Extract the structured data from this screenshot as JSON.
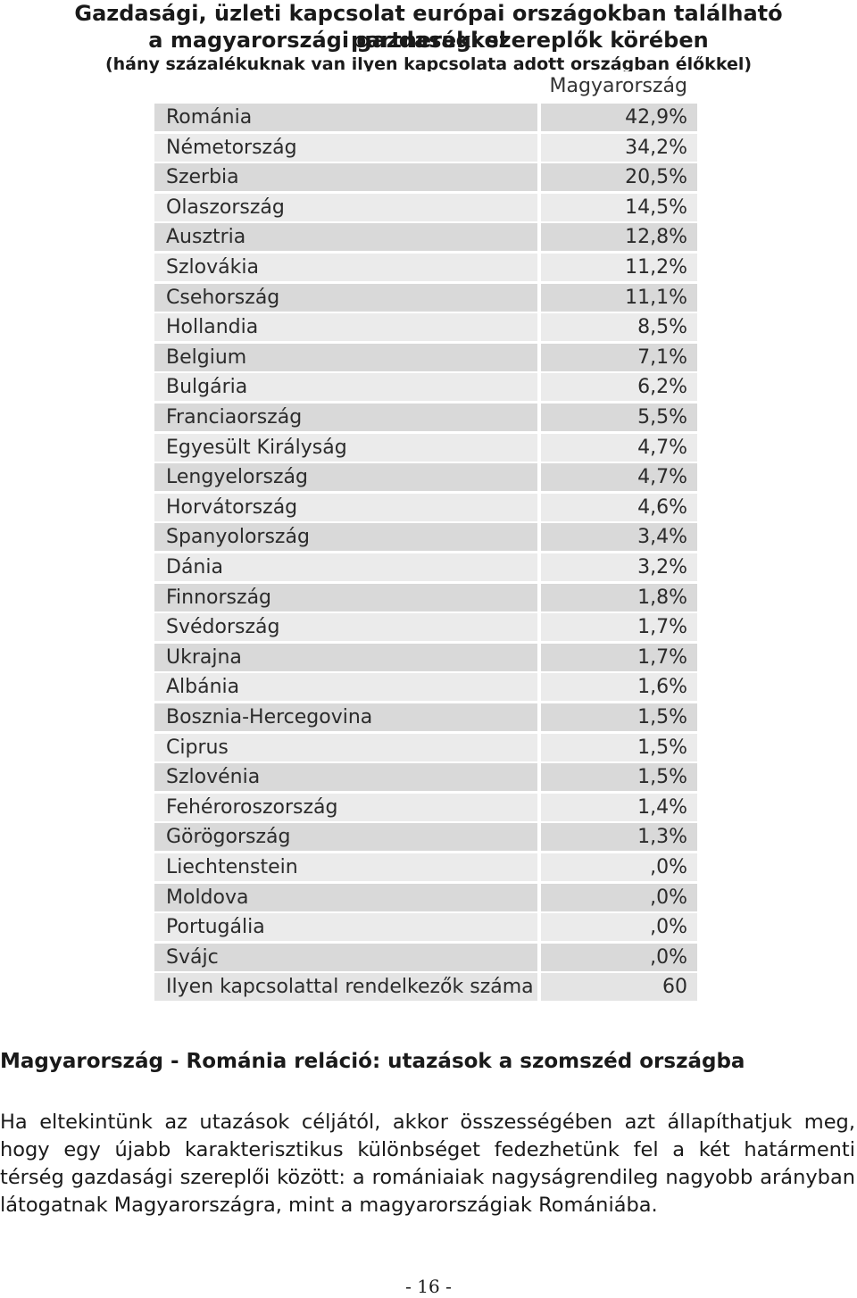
{
  "heading": {
    "line1": "Gazdasági, üzleti kapcsolat európai országokban található partnerekkel",
    "line2": "a magyarországi gazdasági szereplők körében",
    "subtitle": "(hány százalékuknak van ilyen kapcsolata adott országban élőkkel)"
  },
  "table": {
    "column_header": "Magyarország",
    "rows": [
      {
        "country": "Románia",
        "value": "42,9%"
      },
      {
        "country": "Németország",
        "value": "34,2%"
      },
      {
        "country": "Szerbia",
        "value": "20,5%"
      },
      {
        "country": "Olaszország",
        "value": "14,5%"
      },
      {
        "country": "Ausztria",
        "value": "12,8%"
      },
      {
        "country": "Szlovákia",
        "value": "11,2%"
      },
      {
        "country": "Csehország",
        "value": "11,1%"
      },
      {
        "country": "Hollandia",
        "value": "8,5%"
      },
      {
        "country": "Belgium",
        "value": "7,1%"
      },
      {
        "country": "Bulgária",
        "value": "6,2%"
      },
      {
        "country": "Franciaország",
        "value": "5,5%"
      },
      {
        "country": "Egyesült Királyság",
        "value": "4,7%"
      },
      {
        "country": "Lengyelország",
        "value": "4,7%"
      },
      {
        "country": "Horvátország",
        "value": "4,6%"
      },
      {
        "country": "Spanyolország",
        "value": "3,4%"
      },
      {
        "country": "Dánia",
        "value": "3,2%"
      },
      {
        "country": "Finnország",
        "value": "1,8%"
      },
      {
        "country": "Svédország",
        "value": "1,7%"
      },
      {
        "country": "Ukrajna",
        "value": "1,7%"
      },
      {
        "country": "Albánia",
        "value": "1,6%"
      },
      {
        "country": "Bosznia-Hercegovina",
        "value": "1,5%"
      },
      {
        "country": "Ciprus",
        "value": "1,5%"
      },
      {
        "country": "Szlovénia",
        "value": "1,5%"
      },
      {
        "country": "Fehéroroszország",
        "value": "1,4%"
      },
      {
        "country": "Görögország",
        "value": "1,3%"
      },
      {
        "country": "Liechtenstein",
        "value": ",0%"
      },
      {
        "country": "Moldova",
        "value": ",0%"
      },
      {
        "country": "Portugália",
        "value": ",0%"
      },
      {
        "country": "Svájc",
        "value": ",0%"
      }
    ],
    "total": {
      "label": "Ilyen kapcsolattal rendelkezők száma",
      "value": "60"
    }
  },
  "section": {
    "heading": "Magyarország - Románia reláció: utazások a szomszéd országba",
    "paragraph": "Ha eltekintünk az utazások céljától, akkor összességében azt állapíthatjuk meg, hogy egy újabb karakterisztikus különbséget fedezhetünk fel a két határmenti térség gazdasági szereplői között: a romániaiak nagyságrendileg nagyobb arányban látogatnak Magyarországra, mint a magyarországiak Romániába."
  },
  "footer": {
    "page_number": "- 16 -"
  }
}
